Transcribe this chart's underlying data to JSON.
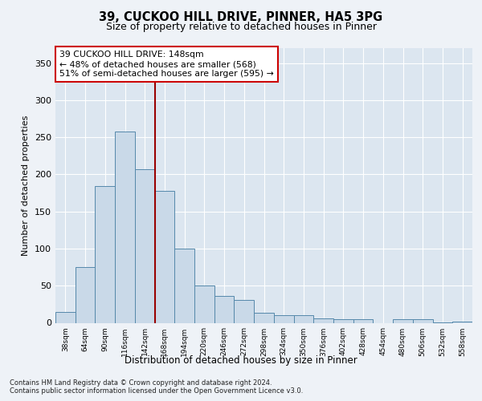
{
  "title1": "39, CUCKOO HILL DRIVE, PINNER, HA5 3PG",
  "title2": "Size of property relative to detached houses in Pinner",
  "xlabel": "Distribution of detached houses by size in Pinner",
  "ylabel": "Number of detached properties",
  "categories": [
    "38sqm",
    "64sqm",
    "90sqm",
    "116sqm",
    "142sqm",
    "168sqm",
    "194sqm",
    "220sqm",
    "246sqm",
    "272sqm",
    "298sqm",
    "324sqm",
    "350sqm",
    "376sqm",
    "402sqm",
    "428sqm",
    "454sqm",
    "480sqm",
    "506sqm",
    "532sqm",
    "558sqm"
  ],
  "values": [
    15,
    75,
    184,
    258,
    207,
    178,
    100,
    50,
    36,
    31,
    13,
    10,
    10,
    6,
    5,
    5,
    0,
    5,
    5,
    1,
    2
  ],
  "bar_color": "#c9d9e8",
  "bar_edge_color": "#5588aa",
  "vline_x_index": 4,
  "vline_color": "#990000",
  "annotation_text": "39 CUCKOO HILL DRIVE: 148sqm\n← 48% of detached houses are smaller (568)\n51% of semi-detached houses are larger (595) →",
  "annotation_box_facecolor": "#ffffff",
  "annotation_box_edgecolor": "#cc0000",
  "footer": "Contains HM Land Registry data © Crown copyright and database right 2024.\nContains public sector information licensed under the Open Government Licence v3.0.",
  "ylim": [
    0,
    370
  ],
  "yticks": [
    0,
    50,
    100,
    150,
    200,
    250,
    300,
    350
  ],
  "fig_facecolor": "#eef2f7",
  "plot_facecolor": "#dce6f0"
}
